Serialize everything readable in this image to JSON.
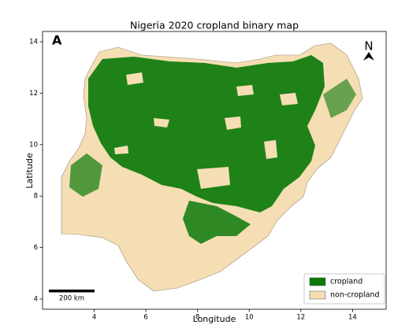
{
  "chart_data": {
    "type": "map",
    "title": "Nigeria 2020 cropland binary map",
    "panel_label": "A",
    "x_label": "Longitude",
    "y_label": "Latitude",
    "xlim": [
      2.0,
      15.3
    ],
    "ylim": [
      3.6,
      14.4
    ],
    "xticks": [
      4,
      6,
      8,
      10,
      12,
      14
    ],
    "yticks": [
      4,
      6,
      8,
      10,
      12,
      14
    ],
    "series": [
      {
        "name": "cropland",
        "color": "#0b7a0b"
      },
      {
        "name": "non-cropland",
        "color": "#f5deb3"
      }
    ],
    "legend": "lower right",
    "scale_bar": "200 km",
    "north_label": "N"
  }
}
